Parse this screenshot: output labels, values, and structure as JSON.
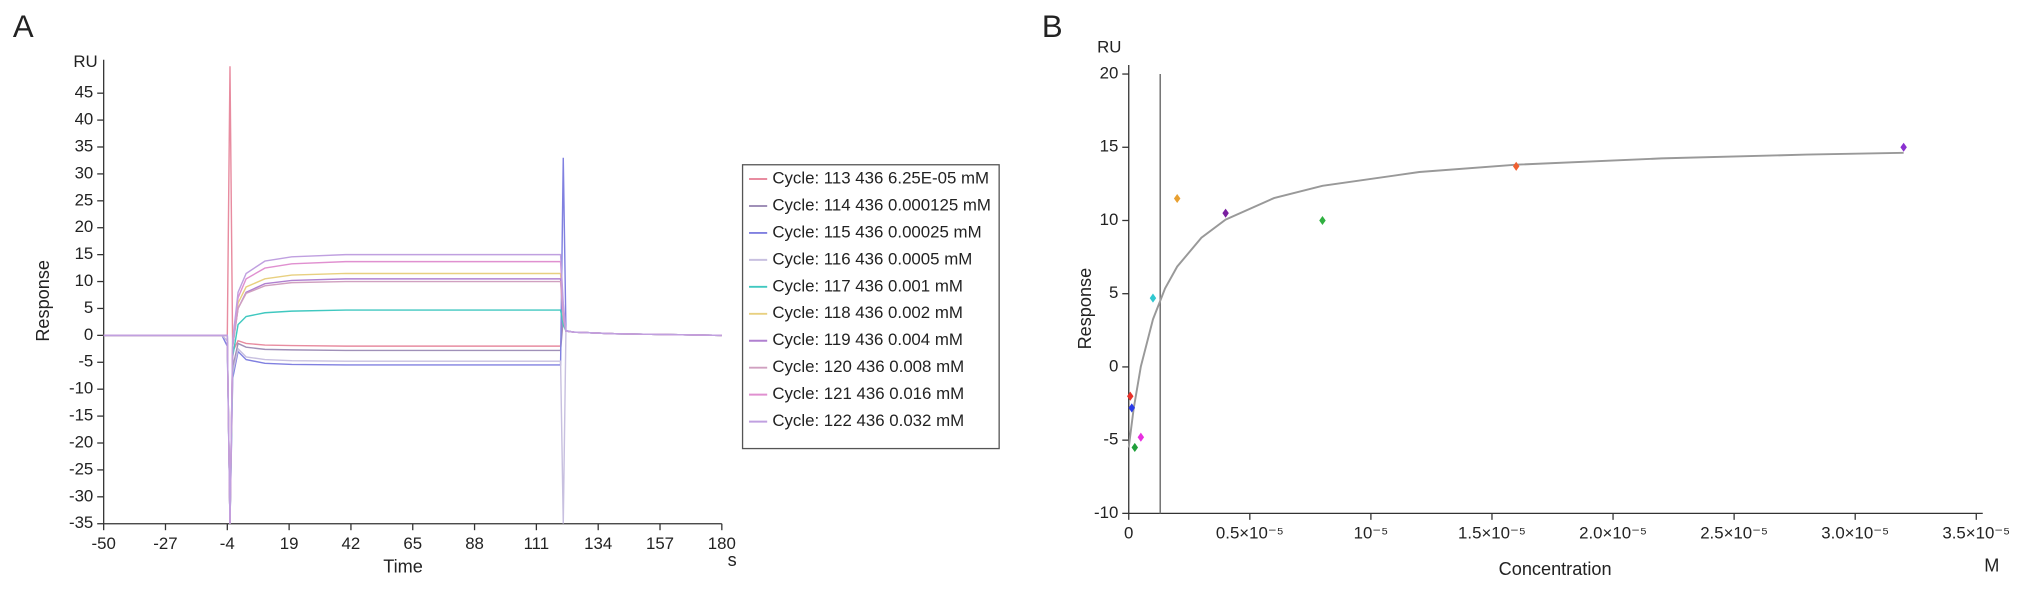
{
  "chart_data": [
    {
      "type": "line",
      "panel_label": "A",
      "y_unit": "RU",
      "x_unit": "s",
      "x_label": "Time",
      "y_label": "Response",
      "xlim": [
        -50,
        180
      ],
      "xticks": [
        -50,
        -27,
        -4,
        19,
        42,
        65,
        88,
        111,
        134,
        157,
        180
      ],
      "ylim": [
        -35,
        50
      ],
      "yticks": [
        -35,
        -30,
        -25,
        -20,
        -15,
        -10,
        -5,
        0,
        5,
        10,
        15,
        20,
        25,
        30,
        35,
        40,
        45
      ],
      "x": [
        -50,
        -6,
        -4,
        -3,
        -2,
        0,
        3,
        10,
        20,
        40,
        80,
        119,
        120,
        121,
        122,
        125,
        140,
        180
      ],
      "series": [
        {
          "name": "Cycle: 113 436 6.25E-05 mM",
          "color": "#e88ca0",
          "values": [
            0,
            0,
            0,
            50,
            -3,
            -1,
            -1.5,
            -1.8,
            -1.9,
            -2,
            -2,
            -2,
            -2,
            5,
            0.8,
            0.6,
            0.3,
            0
          ]
        },
        {
          "name": "Cycle: 114 436 0.000125 mM",
          "color": "#a090b8",
          "values": [
            0,
            0,
            -1,
            -35,
            -6,
            -1.5,
            -2.2,
            -2.6,
            -2.7,
            -2.8,
            -2.8,
            -2.8,
            -2.8,
            3,
            0.8,
            0.6,
            0.3,
            0
          ]
        },
        {
          "name": "Cycle: 115 436 0.00025 mM",
          "color": "#8080e0",
          "values": [
            0,
            0,
            -2,
            -35,
            -8,
            -3,
            -4.5,
            -5.2,
            -5.4,
            -5.5,
            -5.5,
            -5.5,
            -5.5,
            33,
            0.9,
            0.6,
            0.3,
            0
          ]
        },
        {
          "name": "Cycle: 116 436 0.0005 mM",
          "color": "#c8c0e0",
          "values": [
            0,
            0,
            -1,
            -35,
            -7,
            -2.5,
            -4,
            -4.5,
            -4.7,
            -4.8,
            -4.8,
            -4.8,
            -4.8,
            -35,
            0.8,
            0.6,
            0.3,
            0
          ]
        },
        {
          "name": "Cycle: 117 436 0.001 mM",
          "color": "#40c8c0",
          "values": [
            0,
            0,
            0,
            -35,
            -4,
            2,
            3.5,
            4.2,
            4.5,
            4.7,
            4.7,
            4.7,
            4.7,
            2,
            0.8,
            0.6,
            0.3,
            0
          ]
        },
        {
          "name": "Cycle: 118 436 0.002 mM",
          "color": "#e8d080",
          "values": [
            0,
            0,
            0,
            -35,
            -2,
            6,
            9,
            10.5,
            11.2,
            11.5,
            11.5,
            11.5,
            11.5,
            4,
            0.8,
            0.6,
            0.3,
            0
          ]
        },
        {
          "name": "Cycle: 119 436 0.004 mM",
          "color": "#b080d0",
          "values": [
            0,
            0,
            0,
            -35,
            -2,
            5,
            8,
            9.6,
            10.2,
            10.5,
            10.5,
            10.5,
            10.5,
            4,
            0.8,
            0.6,
            0.3,
            0
          ]
        },
        {
          "name": "Cycle: 120 436 0.008 mM",
          "color": "#d0a0c0",
          "values": [
            0,
            0,
            0,
            -35,
            -2,
            5,
            7.8,
            9.2,
            9.8,
            10,
            10,
            10,
            10,
            3,
            0.8,
            0.6,
            0.3,
            0
          ]
        },
        {
          "name": "Cycle: 121 436 0.016 mM",
          "color": "#e090d0",
          "values": [
            0,
            0,
            0,
            -35,
            -1,
            7,
            10.5,
            12.5,
            13.3,
            13.7,
            13.7,
            13.7,
            13.7,
            5,
            0.8,
            0.6,
            0.3,
            0
          ]
        },
        {
          "name": "Cycle: 122 436 0.032 mM",
          "color": "#c0a0e0",
          "values": [
            0,
            0,
            0,
            -35,
            -1,
            8,
            11.5,
            13.8,
            14.6,
            15,
            15,
            15,
            15,
            6,
            0.8,
            0.6,
            0.3,
            0
          ]
        }
      ]
    },
    {
      "type": "scatter",
      "panel_label": "B",
      "y_unit": "RU",
      "x_unit": "M",
      "x_label": "Concentration",
      "y_label": "Response",
      "xlim": [
        0,
        3.5e-05
      ],
      "xticks": [
        0,
        {
          "value": 5e-06,
          "label": "0.5×10⁻⁵"
        },
        {
          "value": 1e-05,
          "label": "10⁻⁵"
        },
        {
          "value": 1.5e-05,
          "label": "1.5×10⁻⁵"
        },
        {
          "value": 2e-05,
          "label": "2.0×10⁻⁵"
        },
        {
          "value": 2.5e-05,
          "label": "2.5×10⁻⁵"
        },
        {
          "value": 3e-05,
          "label": "3.0×10⁻⁵"
        },
        {
          "value": 3.5e-05,
          "label": "3.5×10⁻⁵"
        }
      ],
      "ylim": [
        -10,
        20
      ],
      "yticks": [
        -10,
        -5,
        0,
        5,
        10,
        15,
        20
      ],
      "x": [
        6.25e-08,
        1.25e-07,
        2.5e-07,
        5e-07,
        1e-06,
        2e-06,
        4e-06,
        8e-06,
        1.6e-05,
        3.2e-05
      ],
      "values": [
        -2,
        -2.8,
        -5.5,
        -4.8,
        4.7,
        11.5,
        10.5,
        10,
        13.7,
        15
      ],
      "point_colors": [
        "#e8312a",
        "#2a3ae8",
        "#1fa03a",
        "#e830e0",
        "#30c8d0",
        "#e8a030",
        "#7a1fa0",
        "#30b040",
        "#f06030",
        "#8a30d0"
      ],
      "reference_x": 1.3e-06,
      "fit": {
        "color": "#999999",
        "x": [
          0,
          2e-07,
          5e-07,
          1e-06,
          1.5e-06,
          2e-06,
          3e-06,
          4e-06,
          6e-06,
          8e-06,
          1.2e-05,
          1.6e-05,
          2.2e-05,
          2.8e-05,
          3.2e-05
        ],
        "values": [
          -5.5,
          -2.88,
          0.03,
          3.25,
          5.36,
          6.85,
          8.82,
          10.06,
          11.53,
          12.37,
          13.31,
          13.81,
          14.24,
          14.5,
          14.62
        ]
      }
    }
  ]
}
